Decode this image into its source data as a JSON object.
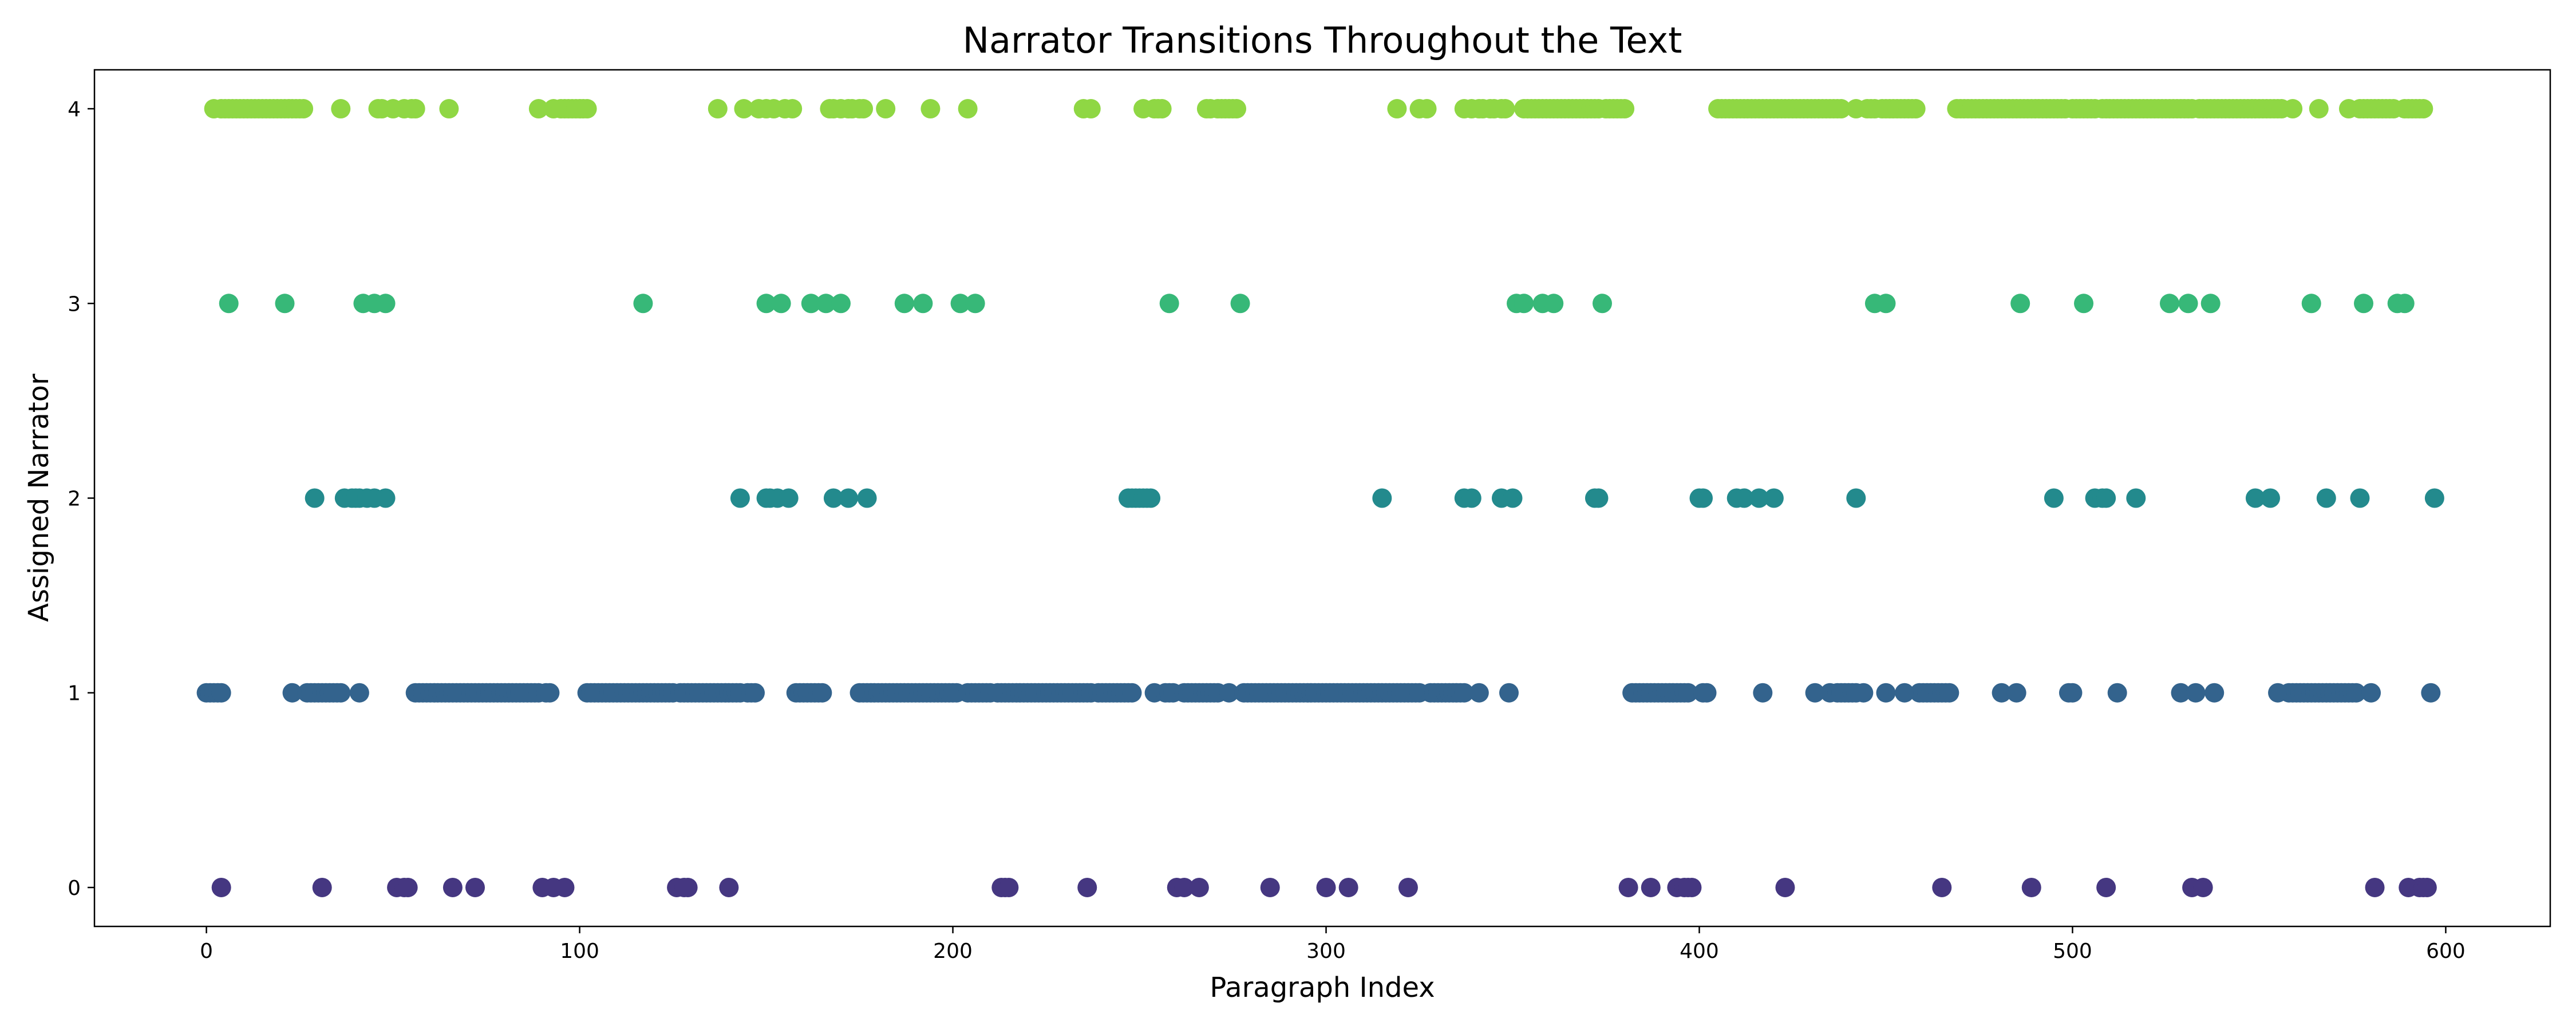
{
  "chart_data": {
    "type": "scatter",
    "title": "Narrator Transitions Throughout the Text",
    "xlabel": "Paragraph Index",
    "ylabel": "Assigned Narrator",
    "xlim": [
      -30,
      628
    ],
    "ylim": [
      -0.2,
      4.2
    ],
    "xticks": [
      0,
      100,
      200,
      300,
      400,
      500,
      600
    ],
    "yticks": [
      0,
      1,
      2,
      3,
      4
    ],
    "grid": false,
    "legend": "none",
    "colors": {
      "0": "#453781",
      "1": "#33638d",
      "2": "#238a8d",
      "3": "#37b878",
      "4": "#8fd744"
    },
    "series": [
      {
        "narrator": 4,
        "x": [
          2,
          4,
          5,
          6,
          7,
          8,
          9,
          10,
          11,
          12,
          13,
          14,
          15,
          16,
          17,
          18,
          19,
          20,
          21,
          22,
          23,
          24,
          25,
          26,
          36,
          46,
          47,
          50,
          53,
          55,
          56,
          65,
          89,
          93,
          95,
          96,
          97,
          98,
          99,
          100,
          101,
          102,
          137,
          144,
          148,
          150,
          152,
          155,
          157,
          167,
          168,
          170,
          172,
          173,
          175,
          176,
          182,
          194,
          204,
          235,
          237,
          251,
          254,
          255,
          256,
          268,
          269,
          271,
          272,
          273,
          274,
          275,
          276,
          319,
          325,
          327,
          337,
          339,
          341,
          342,
          344,
          345,
          347,
          348,
          353,
          354,
          355,
          356,
          357,
          358,
          359,
          360,
          361,
          362,
          363,
          364,
          365,
          366,
          367,
          368,
          369,
          370,
          371,
          372,
          373,
          375,
          376,
          377,
          378,
          379,
          380,
          405,
          406,
          407,
          408,
          409,
          410,
          411,
          412,
          413,
          414,
          415,
          416,
          417,
          418,
          419,
          420,
          421,
          422,
          423,
          424,
          425,
          426,
          427,
          428,
          429,
          430,
          431,
          432,
          433,
          434,
          435,
          436,
          437,
          438,
          442,
          445,
          446,
          447,
          449,
          450,
          451,
          452,
          453,
          454,
          455,
          456,
          457,
          458,
          469,
          470,
          471,
          472,
          473,
          474,
          475,
          476,
          477,
          478,
          479,
          480,
          481,
          482,
          483,
          484,
          485,
          486,
          487,
          488,
          489,
          490,
          491,
          492,
          493,
          494,
          495,
          496,
          497,
          498,
          500,
          501,
          502,
          503,
          504,
          505,
          506,
          508,
          509,
          510,
          511,
          512,
          513,
          514,
          515,
          516,
          517,
          518,
          519,
          520,
          521,
          522,
          523,
          524,
          525,
          526,
          527,
          528,
          529,
          530,
          531,
          532,
          534,
          535,
          536,
          537,
          538,
          539,
          540,
          541,
          542,
          543,
          544,
          545,
          546,
          547,
          548,
          549,
          550,
          551,
          552,
          553,
          554,
          555,
          556,
          559,
          566,
          574,
          577,
          578,
          579,
          580,
          581,
          582,
          583,
          584,
          585,
          586,
          589,
          590,
          591,
          592,
          593,
          594
        ]
      },
      {
        "narrator": 3,
        "x": [
          6,
          21,
          42,
          45,
          48,
          117,
          150,
          154,
          162,
          166,
          170,
          187,
          192,
          202,
          206,
          258,
          277,
          351,
          353,
          358,
          361,
          374,
          447,
          450,
          486,
          503,
          526,
          531,
          537,
          564,
          578,
          587,
          589
        ]
      },
      {
        "narrator": 2,
        "x": [
          29,
          37,
          39,
          40,
          41,
          43,
          45,
          48,
          143,
          150,
          151,
          153,
          156,
          168,
          172,
          177,
          247,
          248,
          249,
          250,
          251,
          252,
          253,
          315,
          337,
          339,
          347,
          350,
          372,
          373,
          400,
          401,
          410,
          412,
          416,
          420,
          442,
          495,
          506,
          508,
          509,
          517,
          549,
          553,
          568,
          577,
          597
        ]
      },
      {
        "narrator": 1,
        "x": [
          0,
          1,
          2,
          3,
          4,
          23,
          27,
          28,
          29,
          30,
          31,
          32,
          33,
          34,
          35,
          36,
          41,
          56,
          57,
          58,
          59,
          60,
          61,
          62,
          63,
          64,
          65,
          66,
          67,
          68,
          69,
          70,
          71,
          72,
          73,
          74,
          75,
          76,
          77,
          78,
          79,
          80,
          81,
          82,
          83,
          84,
          85,
          86,
          87,
          88,
          89,
          91,
          92,
          102,
          103,
          104,
          105,
          106,
          107,
          108,
          109,
          110,
          111,
          112,
          113,
          114,
          115,
          116,
          117,
          118,
          119,
          120,
          121,
          122,
          123,
          124,
          125,
          127,
          128,
          129,
          130,
          131,
          132,
          133,
          134,
          135,
          136,
          137,
          138,
          139,
          140,
          141,
          142,
          143,
          145,
          146,
          147,
          158,
          159,
          160,
          161,
          162,
          163,
          164,
          165,
          175,
          176,
          177,
          178,
          179,
          180,
          181,
          182,
          183,
          184,
          185,
          186,
          187,
          188,
          189,
          190,
          191,
          192,
          193,
          194,
          195,
          196,
          197,
          198,
          199,
          200,
          201,
          204,
          205,
          206,
          207,
          208,
          209,
          210,
          212,
          213,
          214,
          215,
          216,
          217,
          218,
          219,
          220,
          221,
          222,
          223,
          224,
          225,
          226,
          227,
          228,
          229,
          230,
          231,
          232,
          233,
          234,
          235,
          236,
          237,
          239,
          240,
          241,
          242,
          243,
          244,
          245,
          246,
          247,
          248,
          254,
          257,
          258,
          259,
          262,
          263,
          264,
          265,
          266,
          267,
          268,
          269,
          270,
          271,
          274,
          278,
          279,
          280,
          281,
          282,
          283,
          284,
          285,
          286,
          287,
          288,
          289,
          290,
          291,
          292,
          293,
          294,
          295,
          296,
          297,
          298,
          299,
          300,
          301,
          302,
          303,
          304,
          305,
          306,
          307,
          308,
          309,
          310,
          311,
          312,
          313,
          314,
          315,
          316,
          317,
          318,
          319,
          320,
          321,
          322,
          323,
          324,
          325,
          328,
          329,
          330,
          331,
          332,
          333,
          334,
          335,
          336,
          337,
          341,
          349,
          382,
          383,
          384,
          385,
          386,
          387,
          388,
          389,
          390,
          391,
          392,
          393,
          394,
          395,
          396,
          397,
          401,
          402,
          417,
          431,
          435,
          437,
          438,
          439,
          440,
          441,
          442,
          444,
          450,
          455,
          459,
          460,
          461,
          462,
          463,
          464,
          465,
          466,
          467,
          481,
          485,
          499,
          500,
          512,
          529,
          533,
          538,
          555,
          558,
          559,
          560,
          561,
          562,
          563,
          564,
          565,
          566,
          567,
          568,
          569,
          570,
          571,
          572,
          573,
          574,
          575,
          576,
          580,
          596
        ]
      },
      {
        "narrator": 0,
        "x": [
          4,
          31,
          51,
          53,
          54,
          66,
          72,
          90,
          93,
          96,
          126,
          128,
          129,
          140,
          213,
          214,
          215,
          236,
          260,
          262,
          266,
          285,
          300,
          306,
          322,
          381,
          387,
          394,
          396,
          397,
          398,
          423,
          465,
          489,
          509,
          532,
          535,
          581,
          590,
          593,
          594,
          595
        ]
      }
    ]
  }
}
